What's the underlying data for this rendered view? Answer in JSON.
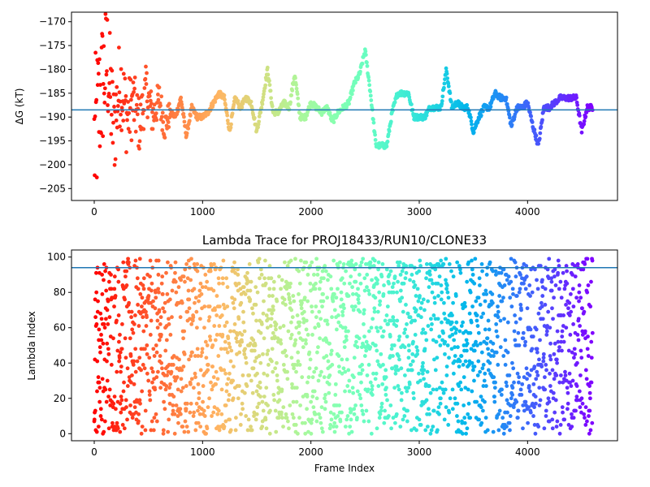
{
  "chart_data": [
    {
      "type": "scatter",
      "title": "",
      "xlabel": "",
      "ylabel": "ΔG (kT)",
      "xlim": [
        -210,
        4830
      ],
      "ylim": [
        -207.5,
        -168
      ],
      "x_ticks": [
        0,
        1000,
        2000,
        3000,
        4000
      ],
      "y_ticks": [
        -205,
        -200,
        -195,
        -190,
        -185,
        -180,
        -175,
        -170
      ],
      "reference_line": {
        "y": -188.5,
        "color": "#1f77b4"
      },
      "colormap": "rainbow (frame index: red → violet)",
      "grid": false,
      "legend": "none",
      "series": [
        {
          "values_by_x": {
            "x": [
              0,
              60,
              120,
              180,
              240,
              300,
              360,
              420,
              480,
              540,
              600,
              650,
              700,
              750,
              800,
              850,
              900,
              950,
              1000,
              1050,
              1100,
              1150,
              1200,
              1250,
              1300,
              1350,
              1400,
              1450,
              1500,
              1550,
              1600,
              1650,
              1700,
              1750,
              1800,
              1850,
              1900,
              1950,
              2000,
              2050,
              2100,
              2150,
              2200,
              2250,
              2300,
              2350,
              2400,
              2450,
              2500,
              2550,
              2600,
              2650,
              2700,
              2750,
              2800,
              2850,
              2900,
              2950,
              3000,
              3050,
              3100,
              3150,
              3200,
              3250,
              3300,
              3350,
              3400,
              3450,
              3500,
              3550,
              3600,
              3650,
              3700,
              3750,
              3800,
              3850,
              3900,
              3950,
              4000,
              4050,
              4100,
              4150,
              4200,
              4250,
              4300,
              4350,
              4400,
              4450,
              4500,
              4550,
              4600
            ],
            "y": [
              -196,
              -185,
              -178,
              -193,
              -182,
              -190,
              -187,
              -192,
              -184,
              -190,
              -186,
              -192,
              -189,
              -190,
              -186,
              -194,
              -188,
              -190,
              -190,
              -189,
              -187,
              -185,
              -186,
              -193,
              -186,
              -188,
              -186,
              -187,
              -193,
              -187,
              -180,
              -189,
              -189,
              -187,
              -188,
              -181,
              -190,
              -190,
              -187,
              -188,
              -189,
              -188,
              -191,
              -189,
              -188,
              -187,
              -183,
              -181,
              -176,
              -185,
              -196,
              -196,
              -196,
              -189,
              -185,
              -185,
              -185,
              -190,
              -190,
              -190,
              -188,
              -188,
              -188,
              -180,
              -188,
              -187,
              -188,
              -188,
              -193,
              -190,
              -188,
              -188,
              -185,
              -186,
              -186,
              -192,
              -188,
              -188,
              -187,
              -192,
              -196,
              -188,
              -188,
              -187,
              -186,
              -186,
              -186,
              -186,
              -193,
              -188,
              -188
            ]
          }
        }
      ]
    },
    {
      "type": "scatter",
      "title": "Lambda Trace for PROJ18433/RUN10/CLONE33",
      "xlabel": "Frame Index",
      "ylabel": "Lambda Index",
      "xlim": [
        -210,
        4830
      ],
      "ylim": [
        -4,
        104
      ],
      "x_ticks": [
        0,
        1000,
        2000,
        3000,
        4000
      ],
      "y_ticks": [
        0,
        20,
        40,
        60,
        80,
        100
      ],
      "reference_line": {
        "y": 94,
        "color": "#1f77b4"
      },
      "colormap": "rainbow (frame index: red → violet)",
      "grid": false,
      "legend": "none",
      "series": [
        {
          "x_range": [
            0,
            4600
          ],
          "y_range": [
            0,
            99
          ],
          "point_count_approx": 4600
        }
      ]
    }
  ],
  "colors": {
    "reference_line": "#1f77b4",
    "axes": "#000000"
  }
}
